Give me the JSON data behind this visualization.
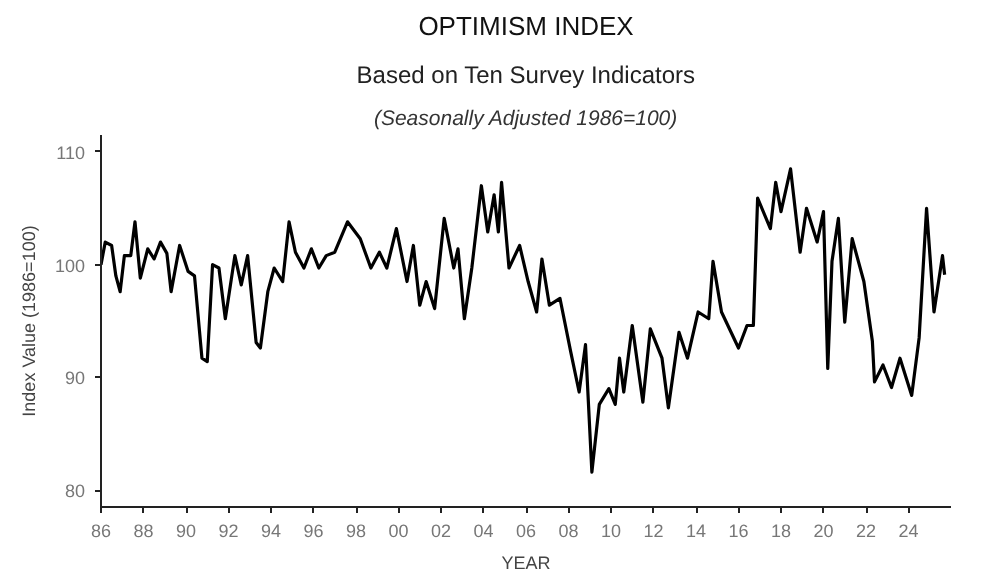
{
  "chart_data": {
    "type": "line",
    "title": "OPTIMISM INDEX",
    "subtitle": "Based on Ten Survey Indicators",
    "annotations": [
      "(Seasonally Adjusted 1986=100)"
    ],
    "xlabel": "YEAR",
    "ylabel": "Index Value (1986=100)",
    "xlim": [
      1986,
      2026
    ],
    "ylim": [
      78.5,
      111.5
    ],
    "xticks": [
      {
        "value": 1986,
        "label": "86"
      },
      {
        "value": 1988,
        "label": "88"
      },
      {
        "value": 1990,
        "label": "90"
      },
      {
        "value": 1992,
        "label": "92"
      },
      {
        "value": 1994,
        "label": "94"
      },
      {
        "value": 1996,
        "label": "96"
      },
      {
        "value": 1998,
        "label": "98"
      },
      {
        "value": 2000,
        "label": "00"
      },
      {
        "value": 2002,
        "label": "02"
      },
      {
        "value": 2004,
        "label": "04"
      },
      {
        "value": 2006,
        "label": "06"
      },
      {
        "value": 2008,
        "label": "08"
      },
      {
        "value": 2010,
        "label": "10"
      },
      {
        "value": 2012,
        "label": "12"
      },
      {
        "value": 2014,
        "label": "14"
      },
      {
        "value": 2016,
        "label": "16"
      },
      {
        "value": 2018,
        "label": "18"
      },
      {
        "value": 2020,
        "label": "20"
      },
      {
        "value": 2022,
        "label": "22"
      },
      {
        "value": 2024,
        "label": "24"
      }
    ],
    "yticks": [
      80,
      90,
      100,
      110
    ],
    "grid": false,
    "marker": "none",
    "line_style": "solid",
    "series": [
      {
        "color": "#000000",
        "x": [
          1986.0,
          1986.2,
          1986.5,
          1986.7,
          1986.9,
          1987.1,
          1987.4,
          1987.6,
          1987.85,
          1988.2,
          1988.5,
          1988.8,
          1989.1,
          1989.3,
          1989.7,
          1990.1,
          1990.4,
          1990.75,
          1991.0,
          1991.25,
          1991.55,
          1991.85,
          1992.3,
          1992.6,
          1992.9,
          1993.3,
          1993.5,
          1993.85,
          1994.15,
          1994.55,
          1994.85,
          1995.15,
          1995.55,
          1995.9,
          1996.25,
          1996.6,
          1997.0,
          1997.6,
          1998.2,
          1998.7,
          1999.1,
          1999.45,
          1999.9,
          2000.4,
          2000.7,
          2001.0,
          2001.3,
          2001.7,
          2002.15,
          2002.6,
          2002.8,
          2003.1,
          2003.45,
          2003.9,
          2004.2,
          2004.5,
          2004.7,
          2004.85,
          2005.2,
          2005.7,
          2006.1,
          2006.5,
          2006.75,
          2007.1,
          2007.6,
          2008.1,
          2008.5,
          2008.8,
          2009.1,
          2009.45,
          2009.9,
          2010.2,
          2010.4,
          2010.6,
          2011.0,
          2011.5,
          2011.85,
          2012.4,
          2012.7,
          2013.2,
          2013.6,
          2014.1,
          2014.6,
          2014.8,
          2015.2,
          2016.0,
          2016.4,
          2016.7,
          2016.9,
          2017.5,
          2017.75,
          2018.0,
          2018.45,
          2018.9,
          2019.2,
          2019.7,
          2020.0,
          2020.2,
          2020.4,
          2020.7,
          2021.0,
          2021.35,
          2021.9,
          2022.3,
          2022.4,
          2022.8,
          2023.2,
          2023.6,
          2024.15,
          2024.5,
          2024.85,
          2025.2,
          2025.6,
          2025.7
        ],
        "values": [
          100,
          102,
          101.7,
          99,
          97.6,
          100.8,
          100.8,
          103.8,
          98.8,
          101.4,
          100.5,
          102,
          101,
          97.6,
          101.7,
          99.4,
          99,
          91.7,
          91.4,
          100,
          99.7,
          95.2,
          100.8,
          98.2,
          100.8,
          93.1,
          92.6,
          97.6,
          99.7,
          98.5,
          103.8,
          101.1,
          99.7,
          101.4,
          99.7,
          100.8,
          101.1,
          103.8,
          102.3,
          99.7,
          101.1,
          99.7,
          103.2,
          98.5,
          101.7,
          96.4,
          98.5,
          96.1,
          104.1,
          99.7,
          101.4,
          95.2,
          99.7,
          107.0,
          102.9,
          106.2,
          102.9,
          107.3,
          99.7,
          101.7,
          98.5,
          95.8,
          100.5,
          96.4,
          97.0,
          92.3,
          88.7,
          92.9,
          81.6,
          87.6,
          89.0,
          87.6,
          91.7,
          88.7,
          94.6,
          87.8,
          94.3,
          91.7,
          87.3,
          94.0,
          91.7,
          95.8,
          95.2,
          100.3,
          95.8,
          92.6,
          94.6,
          94.6,
          105.9,
          103.2,
          107.3,
          104.7,
          108.5,
          101.1,
          105.0,
          102.0,
          104.7,
          90.8,
          100.3,
          104.1,
          94.9,
          102.3,
          98.5,
          93.2,
          89.6,
          91.1,
          89.1,
          91.7,
          88.4,
          93.5,
          105.0,
          95.8,
          100.8,
          99.1
        ]
      }
    ]
  }
}
